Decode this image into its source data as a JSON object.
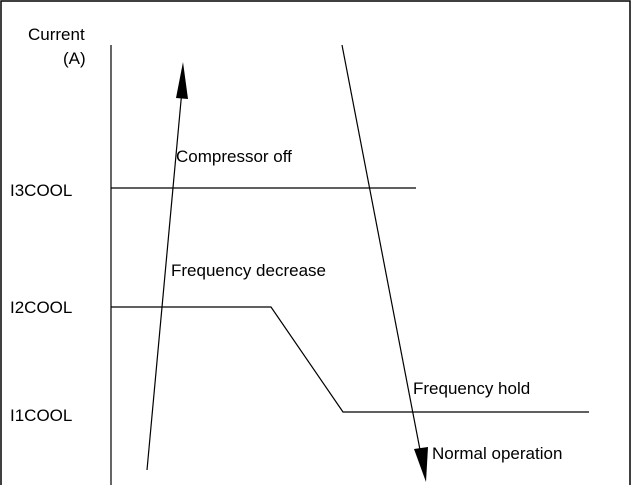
{
  "axis": {
    "label_line1": "Current",
    "label_line2": "(A)"
  },
  "levels": [
    "I3COOL",
    "I2COOL",
    "I1COOL"
  ],
  "regions": {
    "compressor_off": "Compressor off",
    "frequency_decrease": "Frequency decrease",
    "frequency_hold": "Frequency hold",
    "normal_operation": "Normal operation"
  }
}
